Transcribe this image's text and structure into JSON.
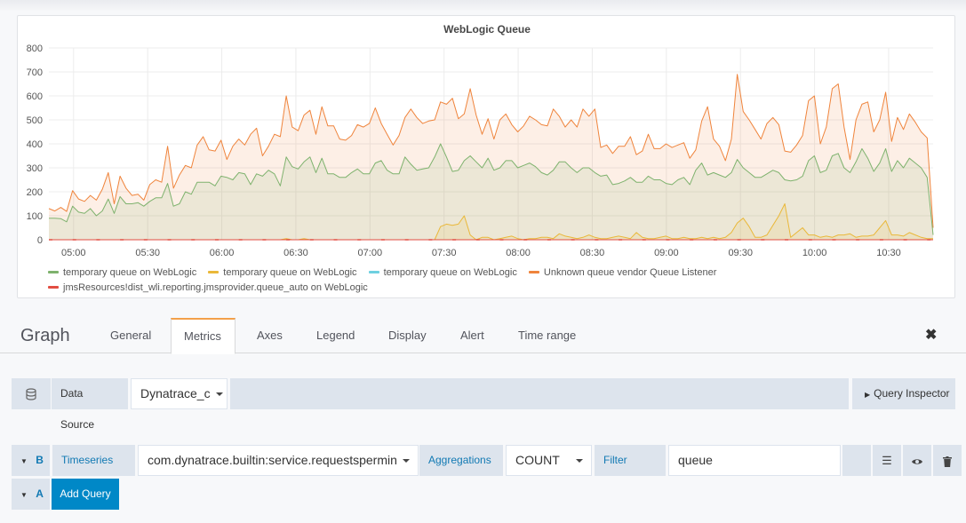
{
  "panel": {
    "title": "WebLogic Queue",
    "legend": [
      {
        "label": "temporary queue on WebLogic",
        "color": "#7eb26d"
      },
      {
        "label": "temporary queue on WebLogic",
        "color": "#eab839"
      },
      {
        "label": "temporary queue on WebLogic",
        "color": "#6ed0e0"
      },
      {
        "label": "Unknown queue vendor Queue Listener",
        "color": "#ef843c"
      },
      {
        "label": "jmsResources!dist_wli.reporting.jmsprovider.queue_auto on WebLogic",
        "color": "#e24d42"
      }
    ]
  },
  "chart_data": {
    "type": "area",
    "title": "WebLogic Queue",
    "ylim": [
      0,
      800
    ],
    "y_ticks": [
      "0",
      "100",
      "200",
      "300",
      "400",
      "500",
      "600",
      "700",
      "800"
    ],
    "x_ticks": [
      "05:00",
      "05:30",
      "06:00",
      "06:30",
      "07:00",
      "07:30",
      "08:00",
      "08:30",
      "09:00",
      "09:30",
      "10:00",
      "10:30"
    ],
    "x_start": "04:50",
    "x_end": "10:48",
    "grid": true,
    "legend_position": "bottom",
    "series": [
      {
        "name": "Unknown queue vendor Queue Listener",
        "color": "#ef843c",
        "fill": true,
        "values": [
          130,
          120,
          135,
          118,
          205,
          170,
          160,
          185,
          165,
          210,
          280,
          150,
          265,
          215,
          185,
          190,
          165,
          230,
          250,
          240,
          390,
          215,
          270,
          310,
          300,
          395,
          430,
          375,
          370,
          415,
          335,
          390,
          420,
          395,
          440,
          465,
          350,
          390,
          440,
          430,
          600,
          470,
          455,
          520,
          540,
          440,
          555,
          475,
          475,
          420,
          415,
          435,
          480,
          470,
          485,
          550,
          485,
          440,
          395,
          435,
          510,
          545,
          510,
          485,
          495,
          500,
          575,
          565,
          590,
          505,
          525,
          630,
          520,
          440,
          505,
          420,
          500,
          525,
          480,
          450,
          475,
          515,
          500,
          480,
          475,
          545,
          515,
          470,
          500,
          470,
          545,
          515,
          545,
          385,
          395,
          360,
          390,
          390,
          430,
          355,
          370,
          440,
          380,
          380,
          400,
          385,
          395,
          405,
          340,
          375,
          495,
          555,
          420,
          390,
          330,
          420,
          690,
          535,
          500,
          460,
          420,
          485,
          510,
          480,
          370,
          365,
          395,
          435,
          580,
          600,
          400,
          470,
          630,
          650,
          470,
          335,
          500,
          565,
          575,
          450,
          500,
          615,
          410,
          510,
          460,
          525,
          490,
          450,
          425,
          50
        ]
      },
      {
        "name": "temporary queue on WebLogic",
        "color": "#7eb26d",
        "fill": true,
        "values": [
          90,
          90,
          88,
          75,
          140,
          115,
          110,
          130,
          100,
          120,
          170,
          110,
          180,
          150,
          150,
          155,
          140,
          160,
          175,
          175,
          235,
          140,
          150,
          200,
          190,
          240,
          240,
          240,
          225,
          265,
          260,
          250,
          280,
          275,
          230,
          275,
          265,
          290,
          275,
          225,
          345,
          305,
          295,
          325,
          345,
          280,
          340,
          275,
          275,
          260,
          260,
          280,
          295,
          275,
          275,
          320,
          330,
          290,
          275,
          275,
          345,
          315,
          290,
          295,
          300,
          345,
          400,
          345,
          285,
          290,
          330,
          350,
          325,
          300,
          340,
          290,
          300,
          330,
          330,
          300,
          310,
          320,
          305,
          280,
          270,
          290,
          325,
          325,
          300,
          280,
          300,
          300,
          280,
          265,
          270,
          230,
          235,
          245,
          260,
          240,
          240,
          265,
          250,
          250,
          235,
          230,
          250,
          260,
          230,
          290,
          320,
          270,
          280,
          270,
          260,
          280,
          335,
          300,
          280,
          260,
          260,
          275,
          290,
          280,
          250,
          245,
          250,
          265,
          330,
          350,
          280,
          290,
          350,
          360,
          300,
          280,
          325,
          380,
          340,
          285,
          320,
          380,
          285,
          330,
          300,
          340,
          320,
          300,
          260,
          20
        ]
      },
      {
        "name": "temporary queue on WebLogic",
        "color": "#eab839",
        "fill": true,
        "values": [
          0,
          0,
          0,
          0,
          0,
          0,
          0,
          0,
          0,
          0,
          0,
          0,
          0,
          0,
          0,
          0,
          0,
          0,
          0,
          0,
          0,
          0,
          0,
          0,
          0,
          0,
          0,
          0,
          0,
          0,
          0,
          0,
          0,
          0,
          0,
          0,
          0,
          0,
          0,
          0,
          5,
          0,
          0,
          5,
          0,
          0,
          0,
          0,
          0,
          0,
          0,
          0,
          0,
          0,
          0,
          0,
          0,
          0,
          0,
          0,
          0,
          0,
          0,
          0,
          0,
          0,
          55,
          65,
          60,
          65,
          100,
          20,
          0,
          10,
          10,
          0,
          5,
          10,
          15,
          5,
          0,
          5,
          5,
          10,
          10,
          5,
          25,
          15,
          10,
          5,
          10,
          20,
          10,
          5,
          5,
          10,
          15,
          10,
          5,
          30,
          10,
          5,
          5,
          10,
          15,
          5,
          5,
          10,
          5,
          5,
          10,
          5,
          10,
          5,
          10,
          30,
          70,
          90,
          55,
          10,
          10,
          20,
          60,
          100,
          150,
          10,
          30,
          50,
          20,
          20,
          10,
          15,
          10,
          20,
          20,
          25,
          10,
          15,
          15,
          20,
          50,
          80,
          20,
          20,
          15,
          30,
          20,
          10,
          5,
          5
        ]
      },
      {
        "name": "temporary queue on WebLogic",
        "color": "#6ed0e0",
        "fill": false,
        "values": [
          0,
          0,
          0,
          0,
          0,
          0,
          0,
          0,
          0,
          0,
          0,
          0,
          0,
          0,
          0,
          0,
          0,
          0,
          0,
          0,
          0,
          0,
          0,
          0,
          0,
          0,
          0,
          0,
          0,
          0,
          0,
          0,
          0,
          0,
          0,
          0,
          0,
          0,
          0,
          0,
          0,
          0,
          0,
          0,
          0,
          0,
          0,
          0,
          0,
          0,
          0,
          0,
          0,
          0,
          0,
          0,
          0,
          0,
          0,
          0,
          0,
          0,
          0,
          0,
          0,
          0,
          0,
          0,
          0,
          0,
          0,
          0,
          0,
          0,
          0,
          0,
          0,
          0,
          0,
          0,
          0,
          0,
          0,
          0,
          0,
          0,
          0,
          0,
          0,
          0,
          0,
          0,
          0,
          0,
          0,
          0,
          0,
          0,
          0,
          0,
          0,
          0,
          0,
          0,
          0,
          0,
          0,
          0,
          0,
          0,
          0,
          0,
          0,
          0,
          0,
          0,
          0,
          0,
          0,
          0,
          0,
          0,
          0,
          0,
          0,
          0,
          0,
          0,
          0,
          0,
          0,
          0,
          0,
          0,
          0,
          0,
          0,
          0,
          0,
          0,
          0,
          0,
          0,
          0,
          0,
          0,
          0,
          0,
          0,
          0
        ]
      },
      {
        "name": "jmsResources!dist_wli.reporting.jmsprovider.queue_auto on WebLogic",
        "color": "#e24d42",
        "fill": false,
        "values": [
          0,
          0,
          0,
          0,
          0,
          0,
          0,
          0,
          0,
          0,
          0,
          0,
          0,
          0,
          0,
          0,
          0,
          0,
          0,
          0,
          0,
          0,
          0,
          0,
          0,
          0,
          0,
          0,
          0,
          0,
          0,
          0,
          0,
          0,
          0,
          0,
          0,
          0,
          0,
          0,
          0,
          0,
          0,
          0,
          0,
          0,
          0,
          0,
          0,
          0,
          0,
          0,
          0,
          0,
          0,
          0,
          0,
          0,
          0,
          0,
          0,
          0,
          0,
          0,
          0,
          0,
          0,
          0,
          0,
          0,
          0,
          0,
          0,
          0,
          0,
          0,
          0,
          0,
          0,
          0,
          0,
          0,
          0,
          0,
          0,
          0,
          0,
          0,
          0,
          0,
          0,
          0,
          0,
          0,
          0,
          0,
          0,
          0,
          0,
          0,
          0,
          0,
          0,
          0,
          0,
          0,
          0,
          0,
          0,
          0,
          0,
          0,
          0,
          0,
          0,
          0,
          0,
          0,
          0,
          0,
          0,
          0,
          0,
          0,
          0,
          0,
          0,
          0,
          0,
          0,
          0,
          0,
          0,
          0,
          0,
          0,
          0,
          0,
          0,
          0,
          0,
          0,
          0,
          0,
          0,
          0,
          0,
          0,
          0,
          0
        ]
      }
    ]
  },
  "editor": {
    "title": "Graph",
    "tabs": [
      "General",
      "Metrics",
      "Axes",
      "Legend",
      "Display",
      "Alert",
      "Time range"
    ],
    "active_tab": "Metrics",
    "close_icon": "close-icon"
  },
  "datasource": {
    "label": "Data Source",
    "value": "Dynatrace_c",
    "query_inspector": "Query Inspector"
  },
  "query_b": {
    "ref": "B",
    "timeseries_label": "Timeseries ID",
    "timeseries_value": "com.dynatrace.builtin:service.requestspermin",
    "aggregations_label": "Aggregations",
    "aggregation_value": "COUNT",
    "filter_label": "Filter",
    "filter_value": "queue"
  },
  "query_a": {
    "ref": "A",
    "add_query": "Add Query"
  }
}
